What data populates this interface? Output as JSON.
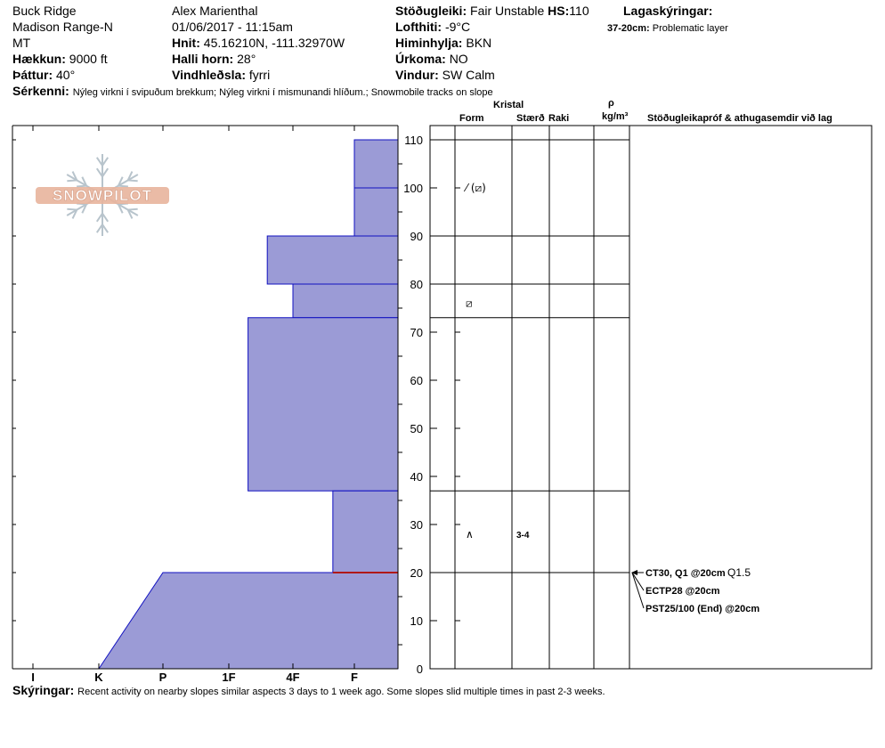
{
  "header": {
    "location": "Buck Ridge",
    "range": "Madison Range-N",
    "state": "MT",
    "elevation_label": "Hækkun:",
    "elevation": "9000 ft",
    "aspect_label": "Þáttur:",
    "aspect": "40°",
    "observer": "Alex Marienthal",
    "datetime": "01/06/2017 - 11:15am",
    "coords_label": "Hnit:",
    "coords": "45.16210N, -111.32970W",
    "slope_label": "Halli horn:",
    "slope": "28°",
    "wind_loading_label": "Vindhleðsla:",
    "wind_loading": "fyrri",
    "stability_label": "Stöðugleiki:",
    "stability": "Fair Unstable",
    "hs_label": "HS:",
    "hs": "110",
    "air_temp_label": "Lofthiti:",
    "air_temp": "-9°C",
    "sky_label": "Himinhylja:",
    "sky": "BKN",
    "precip_label": "Úrkoma:",
    "precip": "NO",
    "wind_label": "Vindur:",
    "wind": "SW  Calm",
    "legend_label": "Lagaskýringar:",
    "legend_key": "37-20cm:",
    "legend_value": "Problematic layer",
    "features_label": "Sérkenni:",
    "features": "Nýleg virkni í svipuðum brekkum; Nýleg virkni í mismunandi hlíðum.; Snowmobile tracks on slope"
  },
  "columns": {
    "crystal": "Kristal",
    "form": "Form",
    "size": "Stærð",
    "moisture": "Raki",
    "rho": "ρ",
    "density_unit": "kg/m³",
    "tests": "Stöðugleikapróf & athugasemdir við lag"
  },
  "logo_text": "SNOWPILOT",
  "comments_label": "Skýringar:",
  "comments": "Recent activity on nearby slopes similar aspects 3 days to 1 week ago. Some slopes slid multiple times in past 2-3 weeks.",
  "colors": {
    "fill": "#9b9bd6",
    "edge": "#1010c0",
    "problem": "#b01818",
    "logo": "#e8b49c"
  },
  "chart_data": {
    "type": "area",
    "hardness_ticks": [
      "I",
      "K",
      "P",
      "1F",
      "4F",
      "F"
    ],
    "depth_ticks": [
      0,
      10,
      20,
      30,
      40,
      50,
      60,
      70,
      80,
      90,
      100,
      110
    ],
    "ylim": [
      0,
      110
    ],
    "layers": [
      {
        "bottom": 100,
        "top": 110,
        "hardness": "F",
        "hardness_value": 5.0
      },
      {
        "bottom": 90,
        "top": 100,
        "hardness": "F",
        "hardness_value": 5.0
      },
      {
        "bottom": 80,
        "top": 90,
        "hardness": "4F-1F",
        "hardness_value": 3.6
      },
      {
        "bottom": 73,
        "top": 80,
        "hardness": "4F",
        "hardness_value": 4.0
      },
      {
        "bottom": 37,
        "top": 73,
        "hardness": "1F+",
        "hardness_value": 3.3
      },
      {
        "bottom": 20,
        "top": 37,
        "hardness": "F-",
        "hardness_value": 4.65
      },
      {
        "bottom": 0,
        "top": 20,
        "hardness": "K-P",
        "hardness_value": 1.0,
        "top_hardness_value": 2.0
      }
    ],
    "problematic_layer": {
      "top": 37,
      "bottom": 20,
      "line_at": 20
    },
    "crystals": [
      {
        "depth": 100,
        "form": "⁄ (⧄)"
      },
      {
        "depth": 76,
        "form": "⧄"
      },
      {
        "depth": 28,
        "form": "∧",
        "size": "3-4"
      }
    ],
    "tests": [
      {
        "label": "CT30, Q1 @20cm",
        "extra": "Q1.5",
        "depth": 20
      },
      {
        "label": "ECTP28 @20cm",
        "depth": 20
      },
      {
        "label": "PST25/100 (End) @20cm",
        "depth": 20
      }
    ]
  }
}
